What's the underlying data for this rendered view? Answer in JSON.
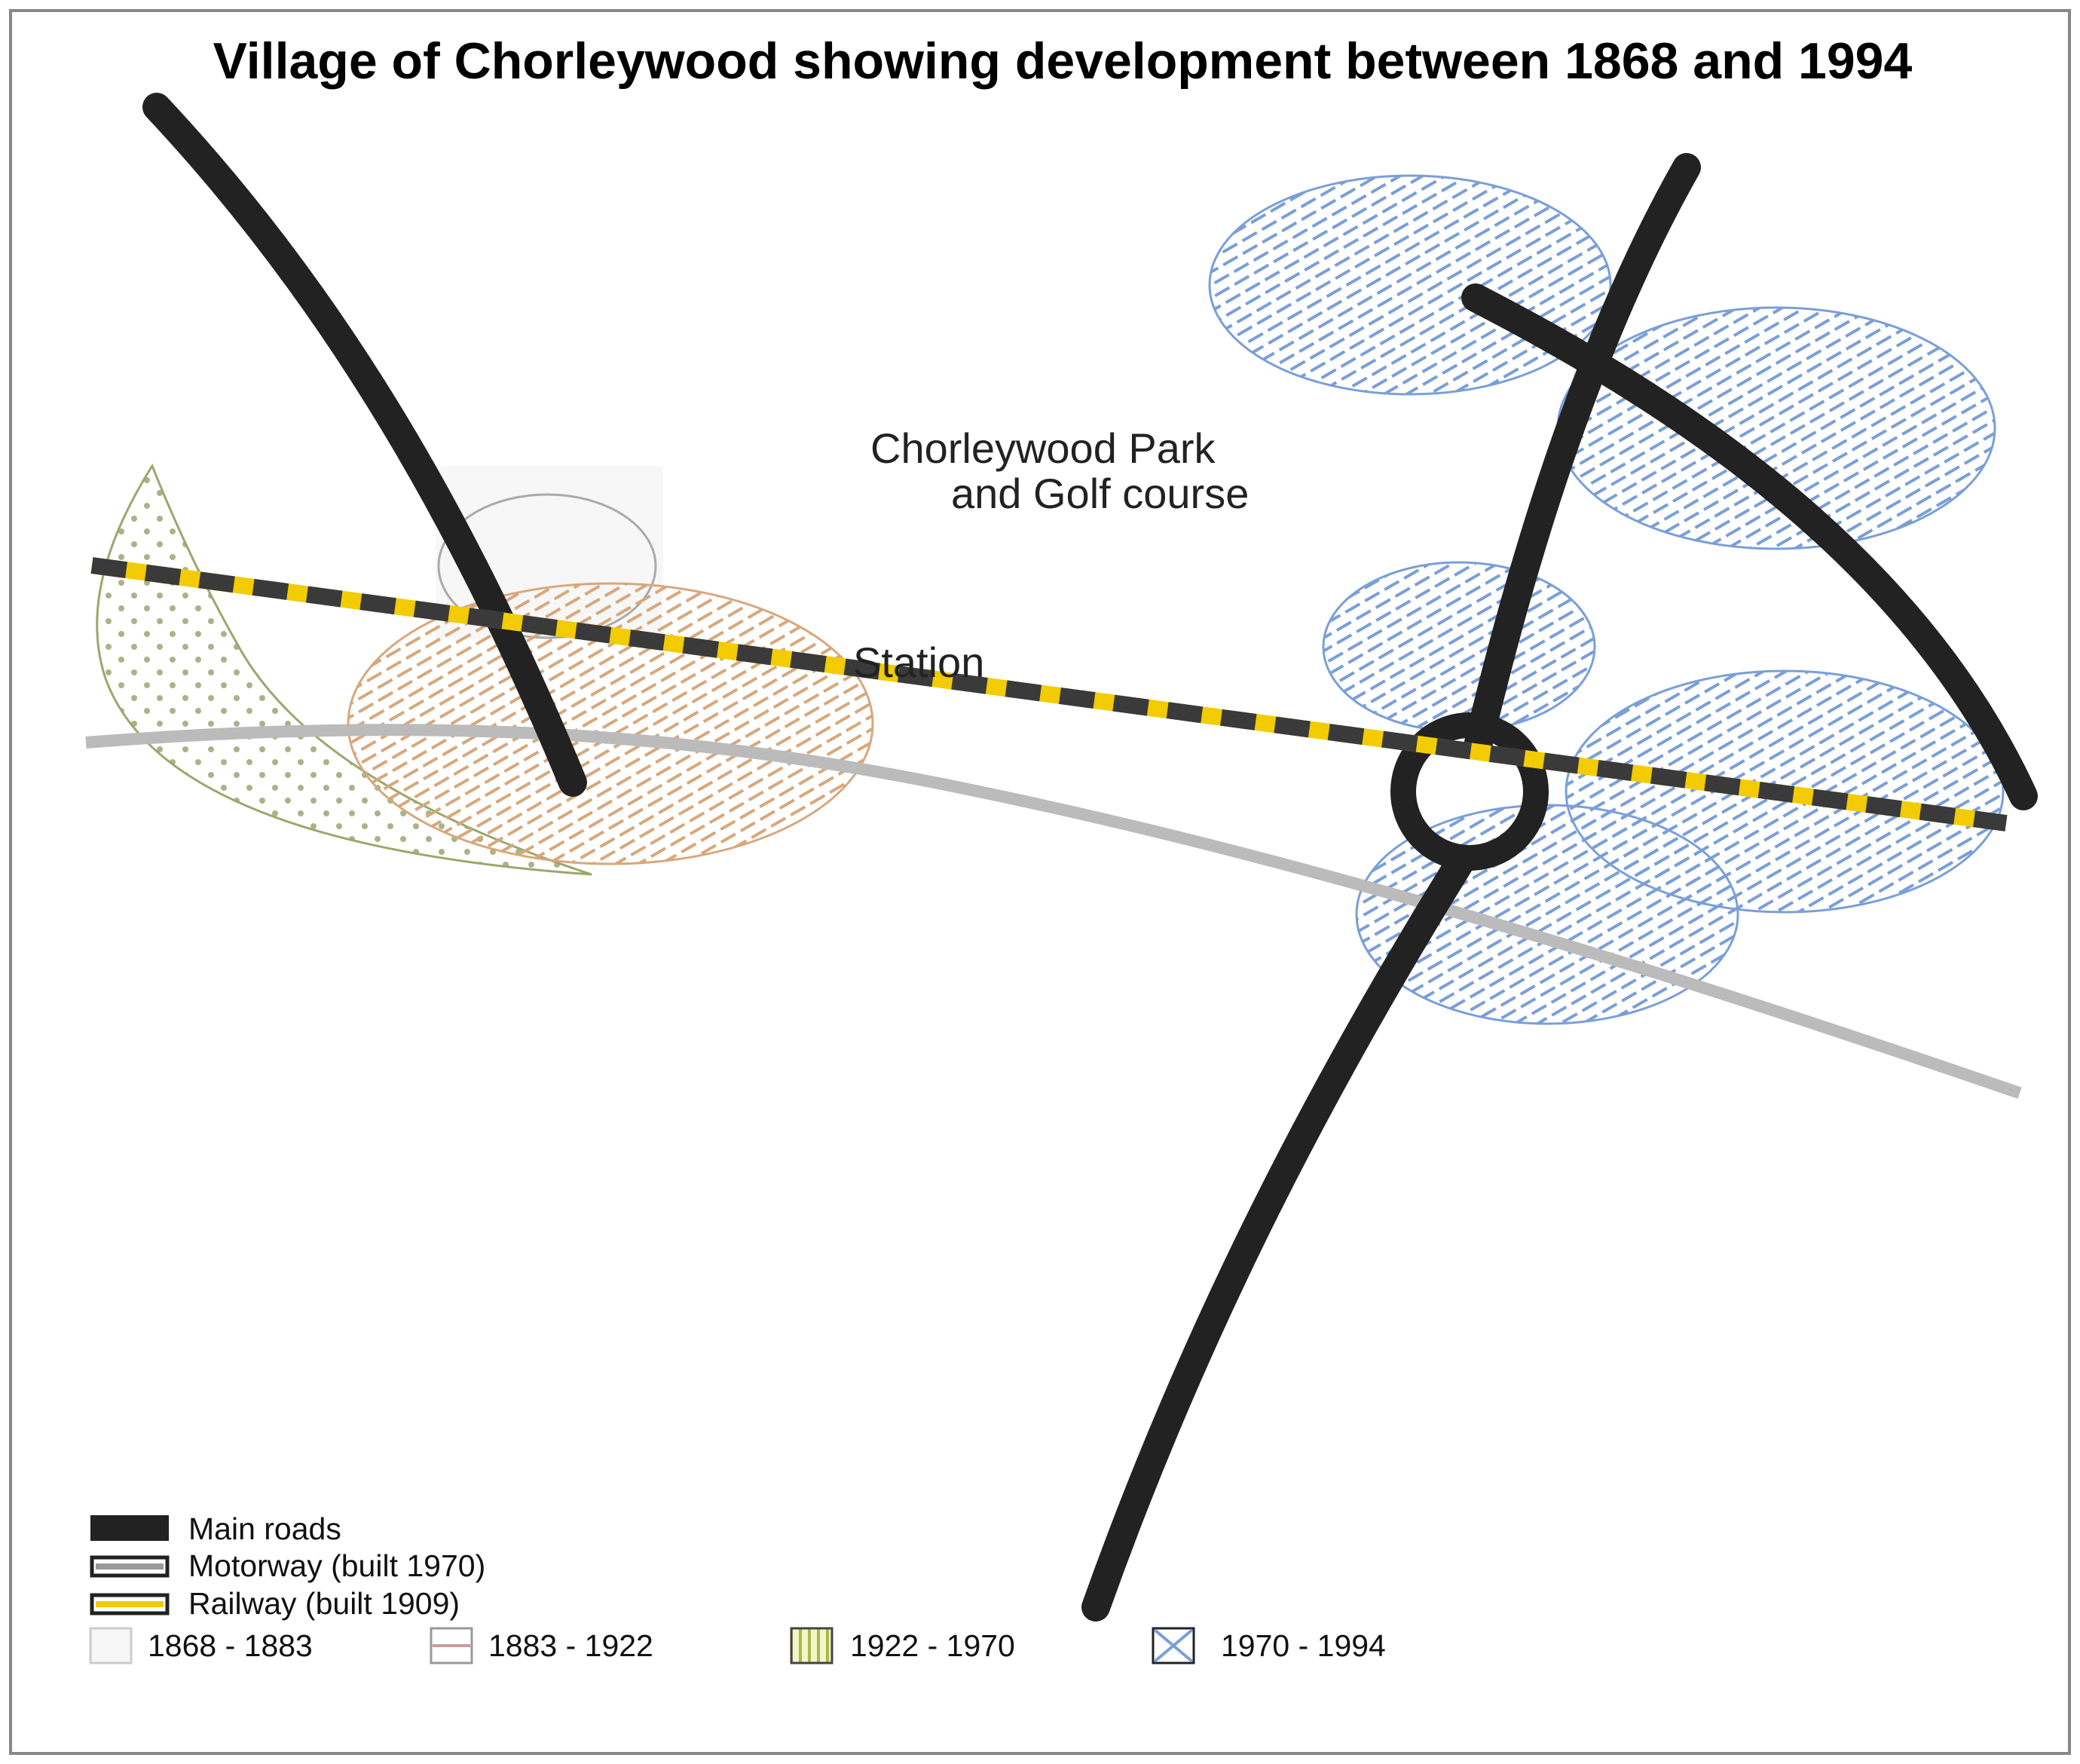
{
  "title": "Village of Chorleywood showing development between 1868 and 1994",
  "labels": {
    "park_line1": "Chorleywood Park",
    "park_line2": "and Golf course",
    "station": "Station"
  },
  "legend": {
    "main_roads": "Main roads",
    "motorway": "Motorway (built 1970)",
    "railway": "Railway (built 1909)",
    "period_1868_1883": "1868 - 1883",
    "period_1883_1922": "1883 - 1922",
    "period_1922_1970": "1922 - 1970",
    "period_1970_1994": "1970 - 1994"
  },
  "colors": {
    "main_road": "#222222",
    "motorway": "#bbbbbb",
    "railway_dark": "#3a3a3a",
    "railway_yellow": "#f2cc00",
    "period_1868_1883": "#f6f6f6",
    "period_1883_1922": "#d7a87c",
    "period_1922_1970": "#9aa86c",
    "period_1970_1994": "#7a9fd8",
    "frame": "#888888"
  }
}
